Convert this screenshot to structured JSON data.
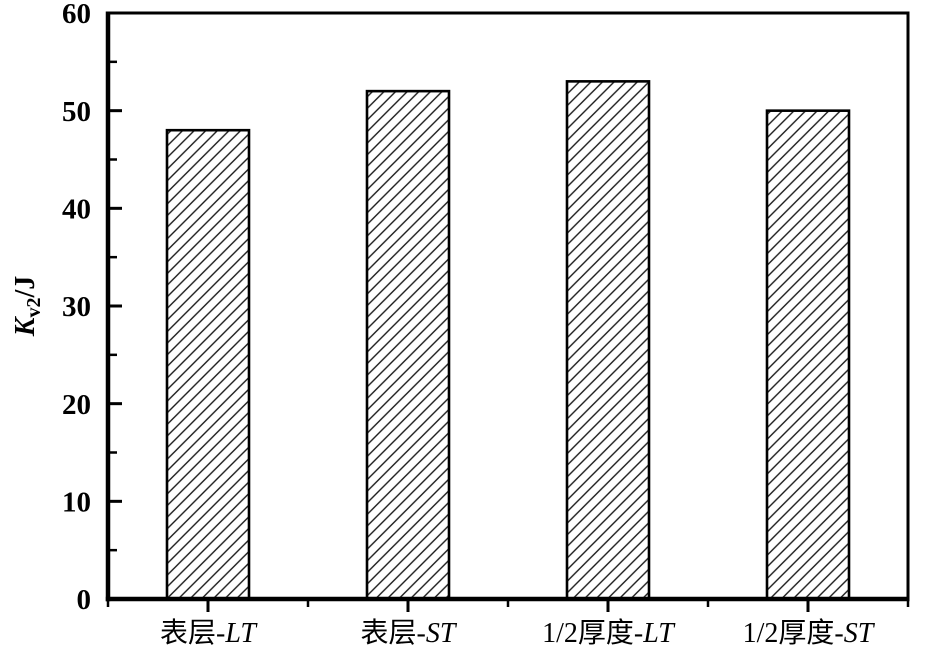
{
  "figure": {
    "background": "#ffffff"
  },
  "chart_data": {
    "type": "bar",
    "categories": [
      "表层-LT",
      "表层-ST",
      "1/2厚度-LT",
      "1/2厚度-ST"
    ],
    "values": [
      48,
      52,
      53,
      50
    ],
    "title": "",
    "xlabel": "",
    "ylabel": "Kv2/J",
    "ylabel_parts": {
      "symbol": "K",
      "subscript": "v2",
      "unit": "/J"
    },
    "ylim": [
      0,
      60
    ],
    "y_major_ticks": [
      0,
      10,
      20,
      30,
      40,
      50,
      60
    ],
    "y_minor_step": 5,
    "bar_hatch": "diagonal-forward",
    "bar_width_fraction": 0.41,
    "grid": false,
    "legend_position": "none",
    "frame": true,
    "tick_direction": {
      "y": "in",
      "x": "out"
    },
    "colors": {
      "axis": "#000000",
      "bar_stroke": "#000000",
      "hatch_line": "#1c1c1c",
      "text": "#000000",
      "background": "#ffffff"
    }
  }
}
